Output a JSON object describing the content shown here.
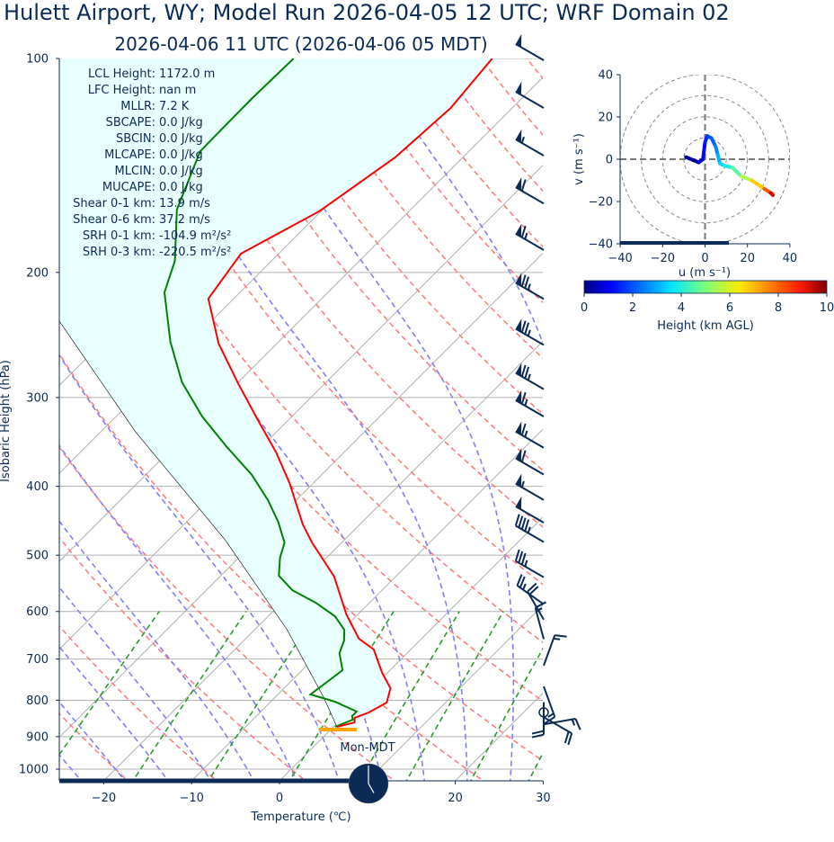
{
  "title": "Hulett Airport, WY; Model Run 2026-04-05 12 UTC; WRF Domain 02",
  "subtitle": "2026-04-06 11 UTC  (2026-04-06 05 MDT)",
  "clock_label": "Mon-MDT",
  "clock_time": "05:00",
  "colors": {
    "text": "#0b2a55",
    "temperature": "#ff0000",
    "dewpoint": "#008000",
    "parcel": "#000000",
    "cin_fill": "#e8ffff",
    "dry_adiabat": "#ff7f7f",
    "moist_adiabat": "#7f7fff",
    "mixing_ratio": "#2e9a2e",
    "isotherm": "#b0b0b0",
    "barb": "#0b2a55",
    "surface_marker": "#ffa500"
  },
  "stats": [
    {
      "label": "LCL Height:",
      "value": "1172.0 m"
    },
    {
      "label": "LFC Height:",
      "value": "nan m"
    },
    {
      "label": "MLLR:",
      "value": "7.2 K"
    },
    {
      "label": "SBCAPE:",
      "value": "0.0 J/kg"
    },
    {
      "label": "SBCIN:",
      "value": "0.0 J/kg"
    },
    {
      "label": "MLCAPE:",
      "value": "0.0 J/kg"
    },
    {
      "label": "MLCIN:",
      "value": "0.0 J/kg"
    },
    {
      "label": "MUCAPE:",
      "value": "0.0 J/kg"
    },
    {
      "label": "Shear 0-1 km:",
      "value": "13.9 m/s"
    },
    {
      "label": "Shear 0-6 km:",
      "value": "37.2 m/s"
    },
    {
      "label": "SRH 0-1 km:",
      "value": "-104.9 m²/s²"
    },
    {
      "label": "SRH 0-3 km:",
      "value": "-220.5 m²/s²"
    }
  ],
  "chart_data": [
    {
      "type": "line",
      "subtype": "skew-t",
      "xlabel": "Temperature (℃)",
      "ylabel": "Isobaric Height (hPa)",
      "xlim": [
        -25,
        30
      ],
      "ylim": [
        1038,
        100
      ],
      "y_scale": "log",
      "x_ticks": [
        -20,
        -10,
        0,
        10,
        20,
        30
      ],
      "y_ticks": [
        100,
        200,
        300,
        400,
        500,
        600,
        700,
        800,
        900,
        1000
      ],
      "grid": true,
      "series": [
        {
          "key": "temperature",
          "points": [
            [
              100,
              -57.9
            ],
            [
              117.4,
              -57.0
            ],
            [
              137.8,
              -57.7
            ],
            [
              164,
              -60.2
            ],
            [
              188.2,
              -64.3
            ],
            [
              217.8,
              -62.9
            ],
            [
              252,
              -56.6
            ],
            [
              287,
              -49.8
            ],
            [
              321.9,
              -43.6
            ],
            [
              358.4,
              -37.7
            ],
            [
              395.8,
              -32.7
            ],
            [
              452.5,
              -26.5
            ],
            [
              479.8,
              -23.4
            ],
            [
              535.8,
              -17.0
            ],
            [
              605.8,
              -11.3
            ],
            [
              655.6,
              -7.1
            ],
            [
              678.7,
              -4.2
            ],
            [
              732,
              -0.6
            ],
            [
              769.3,
              2.1
            ],
            [
              806,
              3.3
            ],
            [
              832,
              2.4
            ],
            [
              847,
              1.4
            ],
            [
              859.5,
              1.9
            ],
            [
              872,
              0.4
            ]
          ]
        },
        {
          "key": "dewpoint",
          "points": [
            [
              100,
              -80.5
            ],
            [
              114,
              -80.7
            ],
            [
              135,
              -80.6
            ],
            [
              163.2,
              -76.6
            ],
            [
              192.7,
              -71.0
            ],
            [
              213.4,
              -68.6
            ],
            [
              250.5,
              -62.3
            ],
            [
              285.5,
              -56.4
            ],
            [
              319,
              -50.2
            ],
            [
              352.3,
              -43.9
            ],
            [
              385.6,
              -37.9
            ],
            [
              418.4,
              -33.2
            ],
            [
              448.6,
              -29.6
            ],
            [
              480,
              -26.5
            ],
            [
              504.1,
              -25.3
            ],
            [
              534.2,
              -23.4
            ],
            [
              560.1,
              -20.2
            ],
            [
              583.4,
              -16.1
            ],
            [
              609.3,
              -12.4
            ],
            [
              636.6,
              -9.8
            ],
            [
              659.2,
              -8.6
            ],
            [
              686.6,
              -7.7
            ],
            [
              725.8,
              -5.4
            ],
            [
              751.5,
              -5.8
            ],
            [
              785.1,
              -6.3
            ],
            [
              803.7,
              -2.7
            ],
            [
              829.9,
              0.9
            ],
            [
              842.1,
              0.9
            ],
            [
              852,
              1.4
            ],
            [
              872,
              0.2
            ]
          ]
        },
        {
          "key": "parcel",
          "points": [
            [
              234.2,
              -77.3
            ],
            [
              335,
              -56.1
            ],
            [
              475.6,
              -33.6
            ],
            [
              636.6,
              -16.3
            ],
            [
              791.9,
              -4.5
            ],
            [
              872,
              0.4
            ]
          ]
        }
      ],
      "surface_pressure": 872,
      "dry_adiabats_theta_c": [
        -30,
        -20,
        -10,
        0,
        10,
        20,
        30,
        40,
        50,
        60,
        70,
        80,
        90,
        100,
        110,
        120,
        130,
        140,
        150,
        160,
        170,
        180,
        190,
        200
      ],
      "moist_adiabats_t1000_c": [
        -35,
        -30,
        -25,
        -20,
        -15,
        -10,
        -5,
        0,
        5,
        10,
        15,
        20,
        25,
        30,
        35
      ],
      "mixing_ratios": [
        0.0004,
        0.001,
        0.002,
        0.004,
        0.007,
        0.01,
        0.016,
        0.024,
        0.032
      ],
      "wind_barbs": [
        {
          "p": 100.6,
          "speed_kt": 50,
          "dir": 300
        },
        {
          "p": 117.4,
          "speed_kt": 50,
          "dir": 300
        },
        {
          "p": 137,
          "speed_kt": 55,
          "dir": 300
        },
        {
          "p": 160,
          "speed_kt": 60,
          "dir": 300
        },
        {
          "p": 186,
          "speed_kt": 65,
          "dir": 300
        },
        {
          "p": 218,
          "speed_kt": 75,
          "dir": 300
        },
        {
          "p": 253,
          "speed_kt": 75,
          "dir": 300
        },
        {
          "p": 292,
          "speed_kt": 75,
          "dir": 300
        },
        {
          "p": 319,
          "speed_kt": 65,
          "dir": 300
        },
        {
          "p": 353,
          "speed_kt": 65,
          "dir": 300
        },
        {
          "p": 385,
          "speed_kt": 60,
          "dir": 300
        },
        {
          "p": 418,
          "speed_kt": 55,
          "dir": 300
        },
        {
          "p": 450,
          "speed_kt": 50,
          "dir": 300
        },
        {
          "p": 479,
          "speed_kt": 45,
          "dir": 300
        },
        {
          "p": 537,
          "speed_kt": 35,
          "dir": 300
        },
        {
          "p": 586,
          "speed_kt": 25,
          "dir": 305
        },
        {
          "p": 616,
          "speed_kt": 20,
          "dir": 330
        },
        {
          "p": 656,
          "speed_kt": 15,
          "dir": 345
        },
        {
          "p": 715,
          "speed_kt": 15,
          "dir": 20
        },
        {
          "p": 765,
          "speed_kt": 15,
          "dir": 160
        },
        {
          "p": 805,
          "speed_kt": 20,
          "dir": 180
        },
        {
          "p": 832,
          "speed_kt": 0,
          "dir": 0
        },
        {
          "p": 845,
          "speed_kt": 20,
          "dir": 120
        },
        {
          "p": 865,
          "speed_kt": 15,
          "dir": 80
        }
      ]
    },
    {
      "type": "line",
      "subtype": "hodograph",
      "xlabel": "u (m s⁻¹)",
      "ylabel": "v (m s⁻¹)",
      "xlim": [
        -40,
        40
      ],
      "ylim": [
        -40,
        40
      ],
      "x_ticks": [
        -40,
        -20,
        0,
        20,
        40
      ],
      "y_ticks": [
        -40,
        -20,
        0,
        20,
        40
      ],
      "rings": [
        10,
        20,
        30,
        40
      ],
      "points": [
        {
          "u": -9,
          "v": 1,
          "h": 0
        },
        {
          "u": -3,
          "v": -1.5,
          "h": 0.5
        },
        {
          "u": -1,
          "v": 0,
          "h": 1
        },
        {
          "u": 0,
          "v": 8,
          "h": 1.3
        },
        {
          "u": 1,
          "v": 11,
          "h": 1.6
        },
        {
          "u": 3,
          "v": 10,
          "h": 2
        },
        {
          "u": 5,
          "v": 6,
          "h": 2.4
        },
        {
          "u": 6,
          "v": 2,
          "h": 2.8
        },
        {
          "u": 7,
          "v": -2,
          "h": 3.2
        },
        {
          "u": 9,
          "v": -3,
          "h": 3.6
        },
        {
          "u": 13,
          "v": -4,
          "h": 4.2
        },
        {
          "u": 17,
          "v": -8,
          "h": 5
        },
        {
          "u": 22,
          "v": -10,
          "h": 6
        },
        {
          "u": 28,
          "v": -14,
          "h": 7.5
        },
        {
          "u": 31,
          "v": -16,
          "h": 9
        },
        {
          "u": 32,
          "v": -17,
          "h": 10
        }
      ],
      "colorbar": {
        "label": "Height (km AGL)",
        "range": [
          0,
          10
        ],
        "ticks": [
          0,
          2,
          4,
          6,
          8,
          10
        ],
        "colormap": "jet"
      }
    }
  ]
}
